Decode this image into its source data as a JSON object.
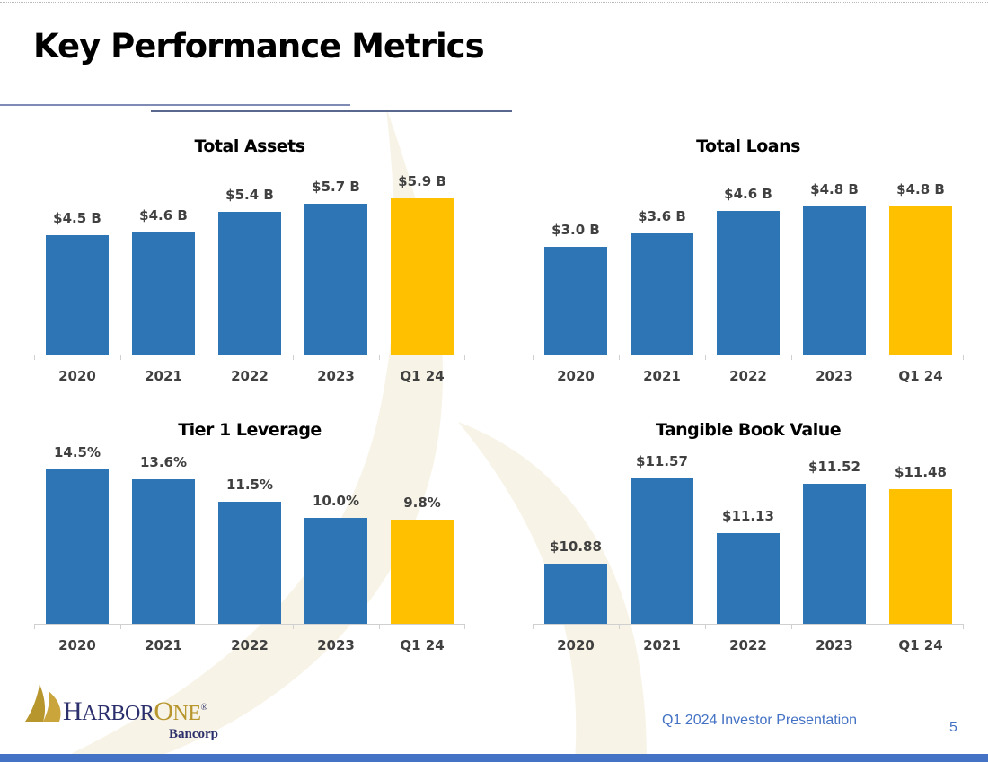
{
  "header": {
    "title": "Key Performance Metrics"
  },
  "footer": {
    "presentation": "Q1 2024 Investor Presentation",
    "page": "5",
    "logo_text": "HARBORONE Bancorp"
  },
  "colors": {
    "bar": "#2E75B6",
    "highlight": "#FFC000",
    "label": "#404040"
  },
  "chart_data": [
    {
      "type": "bar",
      "title": "Total Assets",
      "categories": [
        "2020",
        "2021",
        "2022",
        "2023",
        "Q1 24"
      ],
      "values": [
        4.5,
        4.6,
        5.4,
        5.7,
        5.9
      ],
      "labels": [
        "$4.5 B",
        "$4.6 B",
        "$5.4 B",
        "$5.7 B",
        "$5.9 B"
      ],
      "unit": "$B",
      "ylim": [
        0,
        7.8
      ],
      "highlight_index": 4
    },
    {
      "type": "bar",
      "title": "Total Loans",
      "categories": [
        "2020",
        "2021",
        "2022",
        "2023",
        "Q1 24"
      ],
      "values": [
        3.0,
        3.6,
        4.6,
        4.8,
        4.8
      ],
      "labels": [
        "$3.0 B",
        "$3.6 B",
        "$4.6 B",
        "$4.8 B",
        "$4.8 B"
      ],
      "unit": "$B",
      "ylim": [
        -1.8,
        7.4
      ],
      "highlight_index": 4
    },
    {
      "type": "bar",
      "title": "Tier 1 Leverage",
      "categories": [
        "2020",
        "2021",
        "2022",
        "2023",
        "Q1 24"
      ],
      "values": [
        14.5,
        13.6,
        11.5,
        10.0,
        9.8
      ],
      "labels": [
        "14.5%",
        "13.6%",
        "11.5%",
        "10.0%",
        "9.8%"
      ],
      "unit": "%",
      "ylim": [
        0,
        16.9
      ],
      "highlight_index": 4
    },
    {
      "type": "bar",
      "title": "Tangible Book Value",
      "categories": [
        "2020",
        "2021",
        "2022",
        "2023",
        "Q1 24"
      ],
      "values": [
        10.88,
        11.57,
        11.13,
        11.52,
        11.48
      ],
      "labels": [
        "$10.88",
        "$11.57",
        "$11.13",
        "$11.52",
        "$11.48"
      ],
      "unit": "$",
      "ylim": [
        10.4,
        11.84
      ],
      "highlight_index": 4
    }
  ]
}
